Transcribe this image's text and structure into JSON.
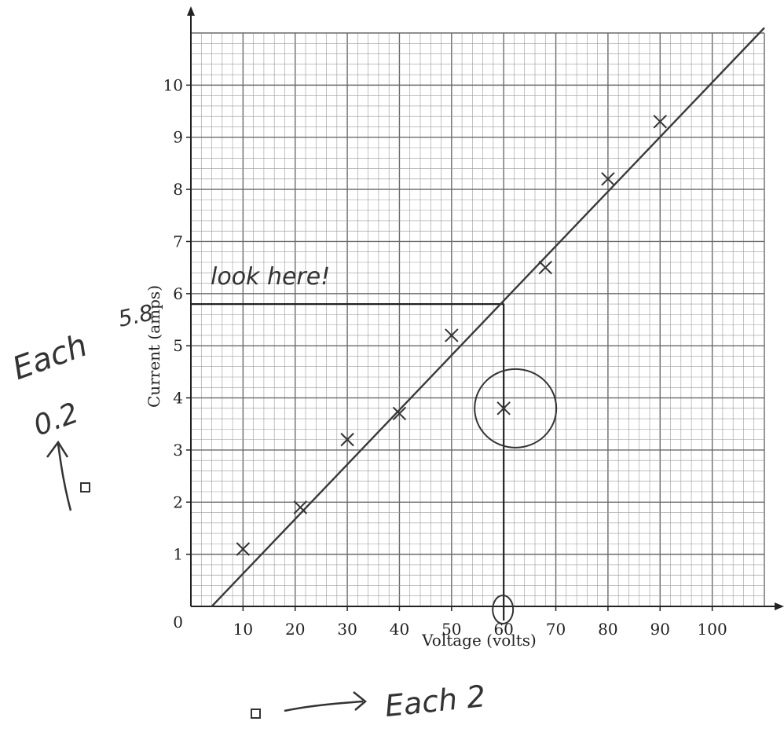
{
  "chart_data": {
    "type": "scatter",
    "xlabel": "Voltage (volts)",
    "ylabel": "Current (amps)",
    "xlim": [
      0,
      110
    ],
    "ylim": [
      0,
      11
    ],
    "x_ticks": [
      10,
      20,
      30,
      40,
      50,
      60,
      70,
      80,
      90,
      100
    ],
    "y_ticks": [
      1,
      2,
      3,
      4,
      5,
      6,
      7,
      8,
      9,
      10
    ],
    "origin_label": "0",
    "grid": true,
    "minor_grid_step_x": 2,
    "minor_grid_step_y": 0.2,
    "points": [
      {
        "x": 10,
        "y": 1.1
      },
      {
        "x": 21,
        "y": 1.9
      },
      {
        "x": 30,
        "y": 3.2
      },
      {
        "x": 40,
        "y": 3.7
      },
      {
        "x": 50,
        "y": 5.2
      },
      {
        "x": 60,
        "y": 3.8
      },
      {
        "x": 68,
        "y": 6.5
      },
      {
        "x": 80,
        "y": 8.2
      },
      {
        "x": 90,
        "y": 9.3
      }
    ],
    "best_fit_line": {
      "x1": 4,
      "y1": 0,
      "x2": 110,
      "y2": 11.1
    },
    "outlier_circled": {
      "x": 60,
      "y": 3.8
    },
    "reading_guide": {
      "x": 60,
      "y": 5.8
    },
    "annotations": {
      "look_here": "look here!",
      "reading_value": "5.8",
      "y_scale_note_line1": "Each",
      "y_scale_note_line2": "0.2",
      "x_scale_note": "Each 2"
    },
    "line_color": "#3a3a3a",
    "grid_color": "#9a9a9a"
  }
}
